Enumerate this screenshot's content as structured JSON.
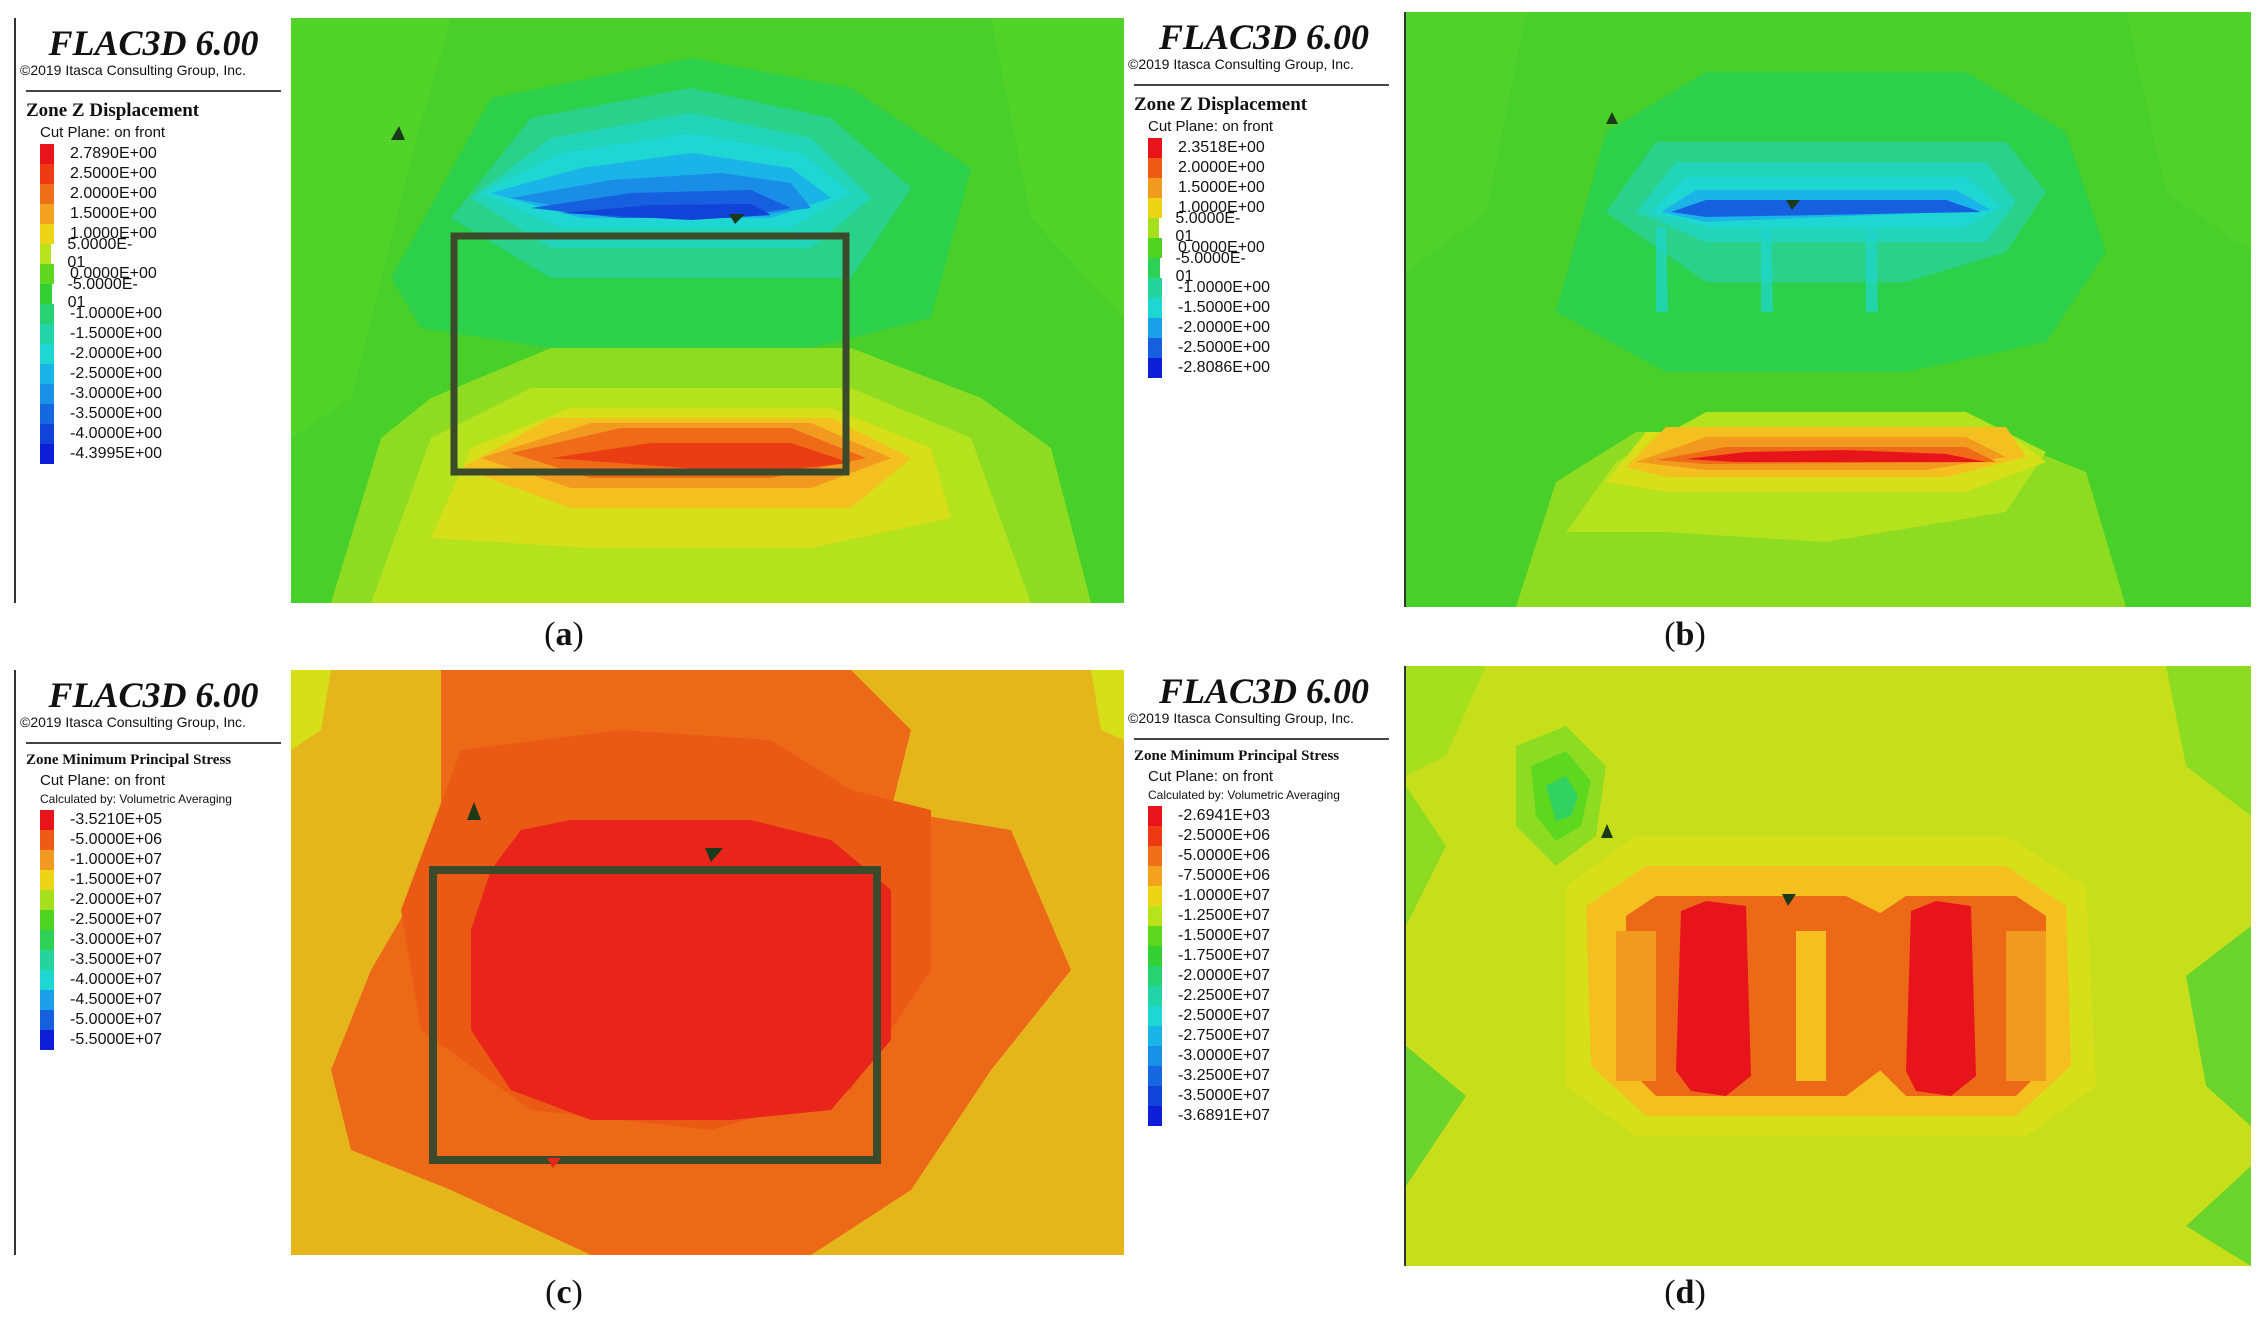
{
  "panels": {
    "a": {
      "title": "FLAC3D 6.00",
      "copyright": "©2019 Itasca Consulting Group, Inc.",
      "heading": "Zone Z Displacement",
      "cut_plane": "Cut Plane: on front",
      "calc": "",
      "caption_letter": "a",
      "legend": [
        {
          "value": "2.7890E+00",
          "color": "#e8141b"
        },
        {
          "value": "2.5000E+00",
          "color": "#ee3a12"
        },
        {
          "value": "2.0000E+00",
          "color": "#f0701a"
        },
        {
          "value": "1.5000E+00",
          "color": "#f3a21f"
        },
        {
          "value": "1.0000E+00",
          "color": "#ecd416"
        },
        {
          "value": "5.0000E-01",
          "color": "#b8e21c"
        },
        {
          "value": "0.0000E+00",
          "color": "#5dd81f"
        },
        {
          "value": "-5.0000E-01",
          "color": "#33d034"
        },
        {
          "value": "-1.0000E+00",
          "color": "#28d172"
        },
        {
          "value": "-1.5000E+00",
          "color": "#22d4a8"
        },
        {
          "value": "-2.0000E+00",
          "color": "#1ed6d2"
        },
        {
          "value": "-2.5000E+00",
          "color": "#1ab4e8"
        },
        {
          "value": "-3.0000E+00",
          "color": "#1890e6"
        },
        {
          "value": "-3.5000E+00",
          "color": "#1668e0"
        },
        {
          "value": "-4.0000E+00",
          "color": "#1243d8"
        },
        {
          "value": "-4.3995E+00",
          "color": "#0c1fd6"
        }
      ]
    },
    "b": {
      "title": "FLAC3D 6.00",
      "copyright": "©2019 Itasca Consulting Group, Inc.",
      "heading": "Zone Z Displacement",
      "cut_plane": "Cut Plane: on front",
      "calc": "",
      "caption_letter": "b",
      "legend": [
        {
          "value": "2.3518E+00",
          "color": "#e8141b"
        },
        {
          "value": "2.0000E+00",
          "color": "#ef5a15"
        },
        {
          "value": "1.5000E+00",
          "color": "#f29a1f"
        },
        {
          "value": "1.0000E+00",
          "color": "#ecd416"
        },
        {
          "value": "5.0000E-01",
          "color": "#a6df1c"
        },
        {
          "value": "0.0000E+00",
          "color": "#4fd421"
        },
        {
          "value": "-5.0000E-01",
          "color": "#2ed156"
        },
        {
          "value": "-1.0000E+00",
          "color": "#24d49a"
        },
        {
          "value": "-1.5000E+00",
          "color": "#1ed6d2"
        },
        {
          "value": "-2.0000E+00",
          "color": "#1a9fe8"
        },
        {
          "value": "-2.5000E+00",
          "color": "#1660e0"
        },
        {
          "value": "-2.8086E+00",
          "color": "#0c1fd6"
        }
      ]
    },
    "c": {
      "title": "FLAC3D 6.00",
      "copyright": "©2019 Itasca Consulting Group, Inc.",
      "heading": "Zone Minimum Principal Stress",
      "cut_plane": "Cut Plane: on front",
      "calc": "Calculated by: Volumetric Averaging",
      "caption_letter": "c",
      "legend": [
        {
          "value": "-3.5210E+05",
          "color": "#e8141b"
        },
        {
          "value": "-5.0000E+06",
          "color": "#ef5a15"
        },
        {
          "value": "-1.0000E+07",
          "color": "#f29a1f"
        },
        {
          "value": "-1.5000E+07",
          "color": "#ecd416"
        },
        {
          "value": "-2.0000E+07",
          "color": "#a6df1c"
        },
        {
          "value": "-2.5000E+07",
          "color": "#4fd421"
        },
        {
          "value": "-3.0000E+07",
          "color": "#2ed156"
        },
        {
          "value": "-3.5000E+07",
          "color": "#24d49a"
        },
        {
          "value": "-4.0000E+07",
          "color": "#1ed6d2"
        },
        {
          "value": "-4.5000E+07",
          "color": "#1a9fe8"
        },
        {
          "value": "-5.0000E+07",
          "color": "#1660e0"
        },
        {
          "value": "-5.5000E+07",
          "color": "#0c1fd6"
        }
      ]
    },
    "d": {
      "title": "FLAC3D 6.00",
      "copyright": "©2019 Itasca Consulting Group, Inc.",
      "heading": "Zone Minimum Principal Stress",
      "cut_plane": "Cut Plane: on front",
      "calc": "Calculated by: Volumetric Averaging",
      "caption_letter": "d",
      "legend": [
        {
          "value": "-2.6941E+03",
          "color": "#e8141b"
        },
        {
          "value": "-2.5000E+06",
          "color": "#ee3a12"
        },
        {
          "value": "-5.0000E+06",
          "color": "#f0701a"
        },
        {
          "value": "-7.5000E+06",
          "color": "#f3a21f"
        },
        {
          "value": "-1.0000E+07",
          "color": "#ecd416"
        },
        {
          "value": "-1.2500E+07",
          "color": "#b8e21c"
        },
        {
          "value": "-1.5000E+07",
          "color": "#5dd81f"
        },
        {
          "value": "-1.7500E+07",
          "color": "#33d034"
        },
        {
          "value": "-2.0000E+07",
          "color": "#28d172"
        },
        {
          "value": "-2.2500E+07",
          "color": "#22d4a8"
        },
        {
          "value": "-2.5000E+07",
          "color": "#1ed6d2"
        },
        {
          "value": "-2.7500E+07",
          "color": "#1ab4e8"
        },
        {
          "value": "-3.0000E+07",
          "color": "#1890e6"
        },
        {
          "value": "-3.2500E+07",
          "color": "#1668e0"
        },
        {
          "value": "-3.5000E+07",
          "color": "#1243d8"
        },
        {
          "value": "-3.6891E+07",
          "color": "#0c1fd6"
        }
      ]
    }
  }
}
